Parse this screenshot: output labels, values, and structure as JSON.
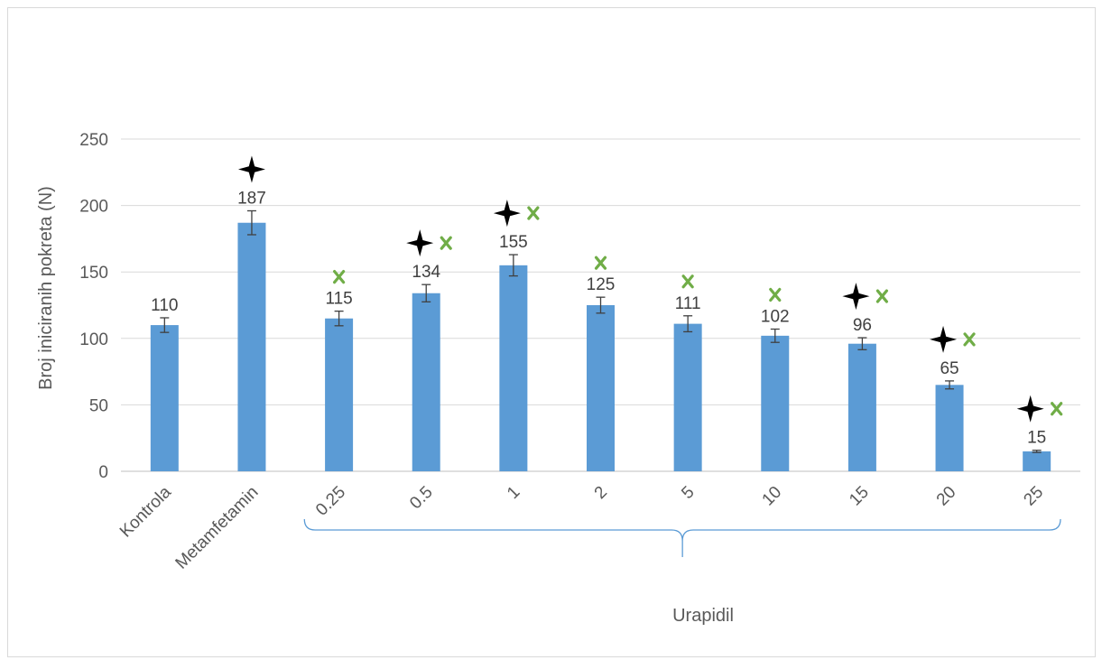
{
  "chart_data": {
    "type": "bar",
    "title": "",
    "ylabel": "Broj iniciranih pokreta (N)",
    "xlabel": "Urapidil",
    "ylim": [
      0,
      250
    ],
    "yticks": [
      0,
      50,
      100,
      150,
      200,
      250
    ],
    "grid": true,
    "categories": [
      "Kontrola",
      "Metamfetamin",
      "0.25",
      "0.5",
      "1",
      "2",
      "5",
      "10",
      "15",
      "20",
      "25"
    ],
    "values": [
      110,
      187,
      115,
      134,
      155,
      125,
      111,
      102,
      96,
      65,
      15
    ],
    "errors": [
      5.5,
      9,
      5.5,
      6.5,
      8,
      6,
      6,
      5,
      4.5,
      3,
      0.8
    ],
    "data_labels": [
      "110",
      "187",
      "115",
      "134",
      "155",
      "125",
      "111",
      "102",
      "96",
      "65",
      "15"
    ],
    "bar_color": "#5b9bd5",
    "grouped_categories": {
      "label": "Urapidil",
      "from_index": 2,
      "to_index": 10
    },
    "significance_markers": {
      "star": {
        "icon": "four-point-star-icon",
        "color": "#000000",
        "categories": [
          "Metamfetamin",
          "0.5",
          "1",
          "15",
          "20",
          "25"
        ]
      },
      "cross": {
        "icon": "green-x-icon",
        "color": "#70ad47",
        "categories": [
          "0.25",
          "0.5",
          "1",
          "2",
          "5",
          "10",
          "15",
          "20",
          "25"
        ]
      }
    }
  }
}
